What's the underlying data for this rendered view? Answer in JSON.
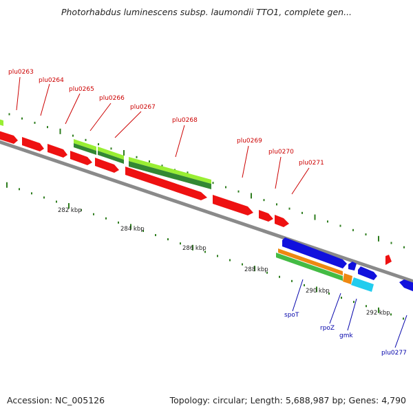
{
  "title": "Photorhabdus luminescens subsp. laumondii TTO1, complete gen...",
  "footer": {
    "accession": "Accession: NC_005126",
    "summary": "Topology: circular; Length: 5,688,987 bp; Genes: 4,790"
  },
  "colors": {
    "backbone": "#8a8a8a",
    "tick": "#2e7d1e",
    "red": "#ee1111",
    "blue": "#1111dd",
    "light_green": "#99ee33",
    "dark_green": "#338833",
    "green": "#44bb44",
    "orange": "#ee8811",
    "cyan": "#22ccee",
    "gene_label_red": "#cc0000",
    "gene_label_blue": "#0000aa"
  },
  "scale_labels": [
    "282 kbp",
    "284 kbp",
    "286 kbp",
    "288 kbp",
    "290 kbp",
    "292 kbp"
  ],
  "gene_labels_top": [
    "plu0263",
    "plu0264",
    "plu0265",
    "plu0266",
    "plu0267",
    "plu0268",
    "plu0269",
    "plu0270",
    "plu0271"
  ],
  "gene_labels_bottom": [
    "spoT",
    "rpoZ",
    "gmk",
    "plu0277"
  ]
}
